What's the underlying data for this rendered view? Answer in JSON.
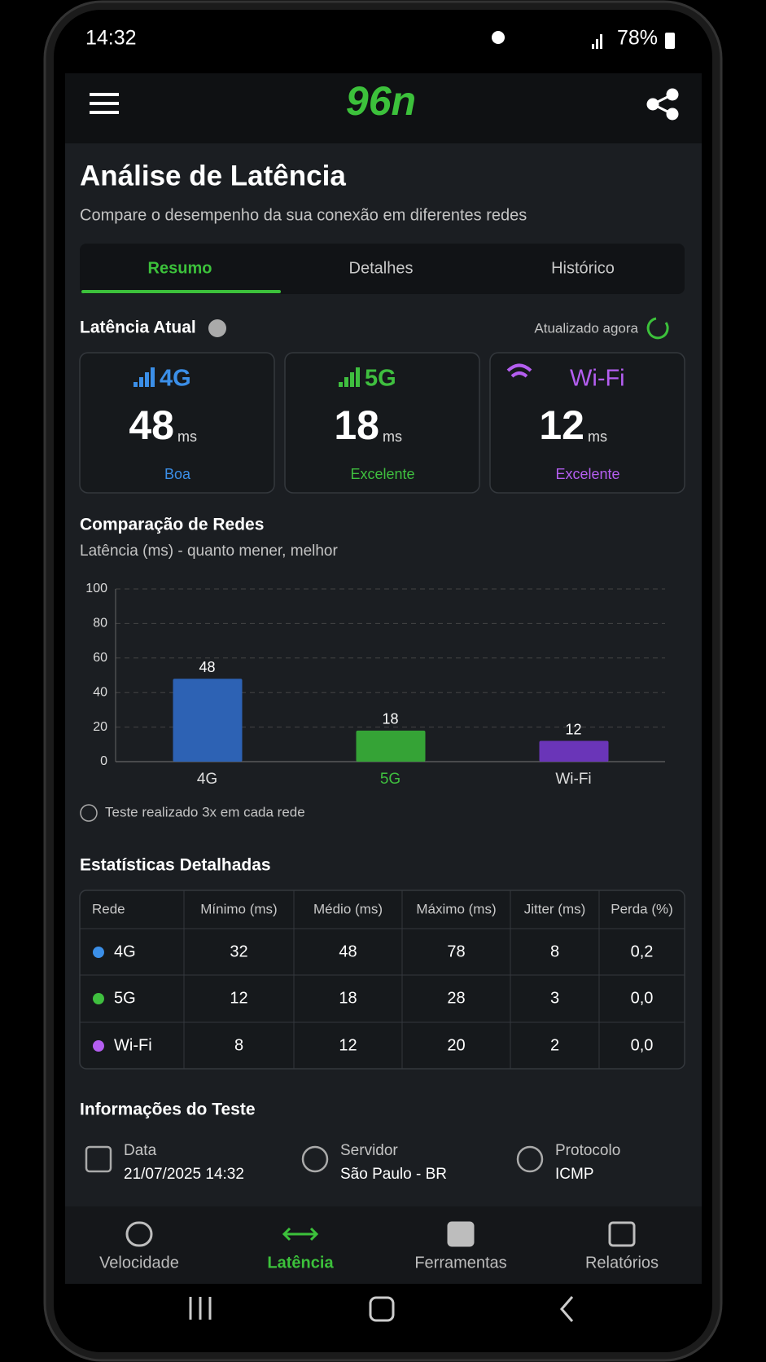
{
  "status_bar": {
    "time": "14:32",
    "battery": "78%"
  },
  "app_bar": {
    "logo": "96n"
  },
  "header": {
    "title": "Análise de Latência",
    "subtitle": "Compare o desempenho da sua conexão em diferentes redes"
  },
  "tabs": [
    "Resumo",
    "Detalhes",
    "Histórico"
  ],
  "current": {
    "title": "Latência Atual",
    "updated": "Atualizado agora",
    "cards": [
      {
        "network": "4G",
        "value": 48,
        "unit": "ms",
        "rating": "Boa",
        "color": "#3b8fe8"
      },
      {
        "network": "5G",
        "value": 18,
        "unit": "ms",
        "rating": "Excelente",
        "color": "#3fbf3f"
      },
      {
        "network": "Wi-Fi",
        "value": 12,
        "unit": "ms",
        "rating": "Excelente",
        "color": "#b45ef0"
      }
    ]
  },
  "chart_data": {
    "type": "bar",
    "title": "Comparação de Redes",
    "subtitle": "Latência (ms) - quanto mener, melhor",
    "categories": [
      "4G",
      "5G",
      "Wi-Fi"
    ],
    "values": [
      48,
      18,
      12
    ],
    "colors": [
      "#2d62b4",
      "#35a336",
      "#6a35b8"
    ],
    "ylim": [
      0,
      100
    ],
    "yticks": [
      0,
      20,
      40,
      60,
      80,
      100
    ],
    "grid": true,
    "note": "Teste realizado 3x em cada rede"
  },
  "stats": {
    "title": "Estatísticas Detalhadas",
    "columns": [
      "Rede",
      "Mínimo (ms)",
      "Médio (ms)",
      "Máximo (ms)",
      "Jitter (ms)",
      "Perda (%)"
    ],
    "rows": [
      [
        "4G",
        "32",
        "48",
        "78",
        "8",
        "0,2"
      ],
      [
        "5G",
        "12",
        "18",
        "28",
        "3",
        "0,0"
      ],
      [
        "Wi-Fi",
        "8",
        "12",
        "20",
        "2",
        "0,0"
      ]
    ]
  },
  "info": {
    "title": "Informações do Teste",
    "items": [
      {
        "label": "Data",
        "value": "21/07/2025 14:32"
      },
      {
        "label": "Servidor",
        "value": "São Paulo - BR"
      },
      {
        "label": "Protocolo",
        "value": "ICMP"
      }
    ]
  },
  "nav": [
    "Velocidade",
    "Latência",
    "Ferramentas",
    "Relatórios"
  ]
}
